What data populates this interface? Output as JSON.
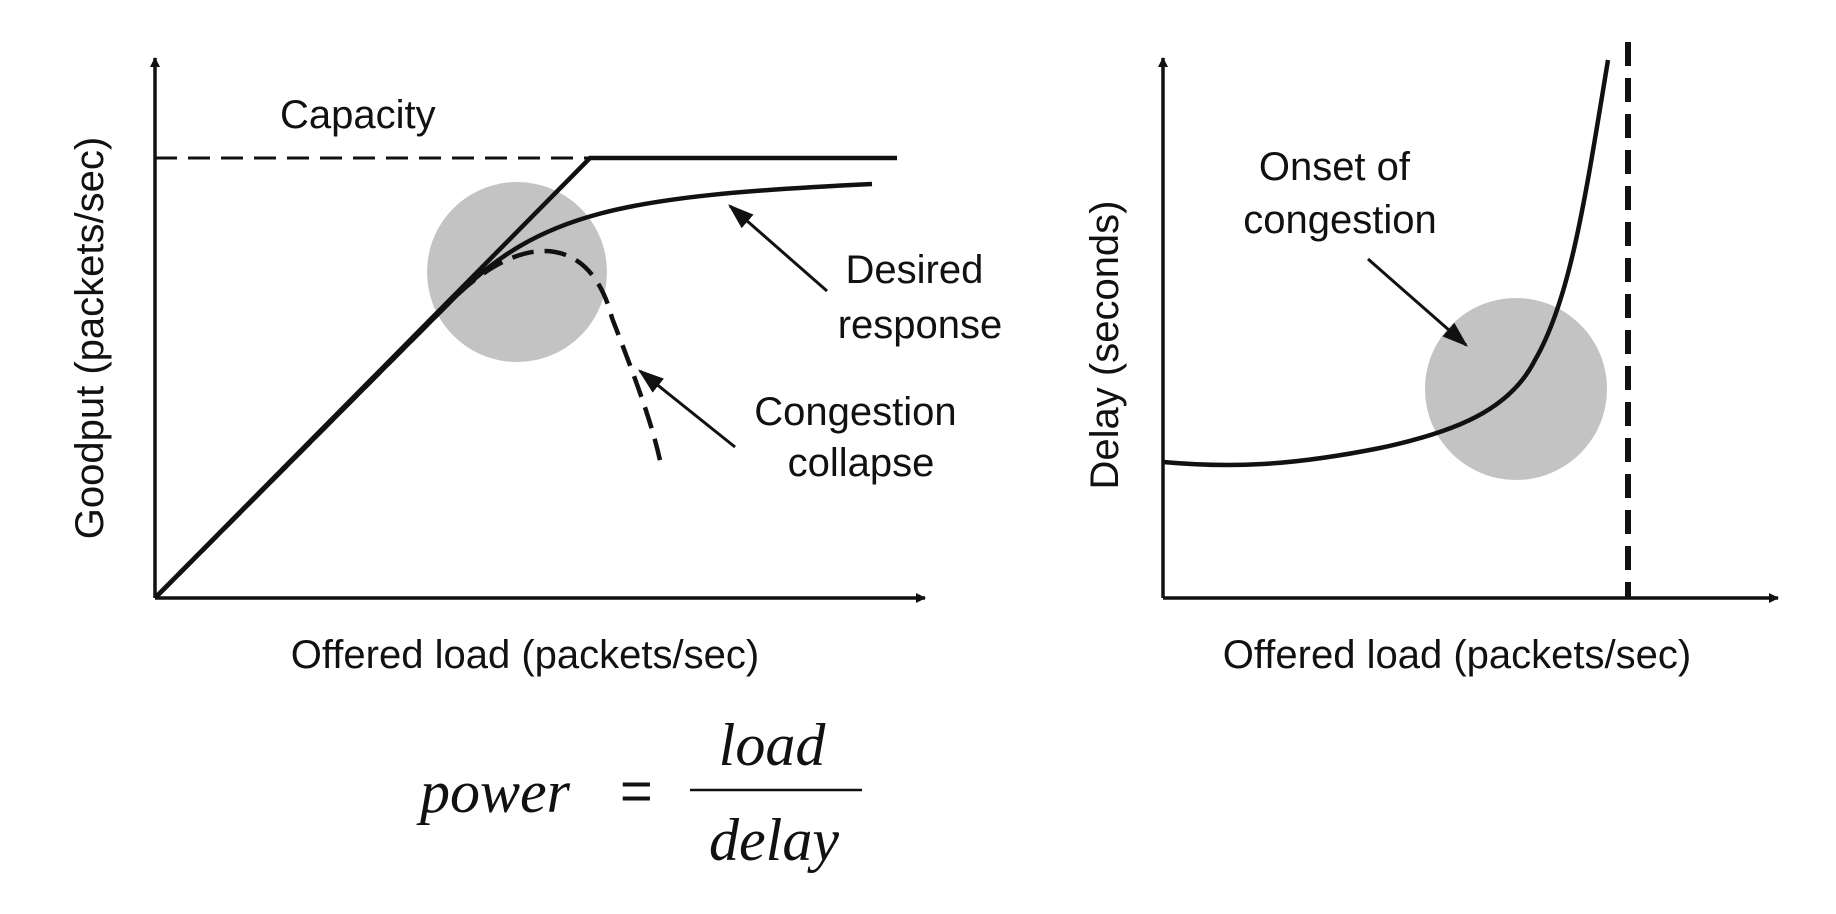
{
  "colors": {
    "ink": "#111111",
    "highlight": "#c3c3c3",
    "background": "#ffffff"
  },
  "left_chart": {
    "ylabel": "Goodput (packets/sec)",
    "xlabel": "Offered load (packets/sec)",
    "capacity_label": "Capacity",
    "desired_label": [
      "Desired",
      "response"
    ],
    "collapse_label": [
      "Congestion",
      "collapse"
    ]
  },
  "right_chart": {
    "ylabel": "Delay (seconds)",
    "xlabel": "Offered load (packets/sec)",
    "onset_label": [
      "Onset of",
      "congestion"
    ]
  },
  "formula": {
    "lhs": "power",
    "equals": "=",
    "numerator": "load",
    "denominator": "delay"
  }
}
